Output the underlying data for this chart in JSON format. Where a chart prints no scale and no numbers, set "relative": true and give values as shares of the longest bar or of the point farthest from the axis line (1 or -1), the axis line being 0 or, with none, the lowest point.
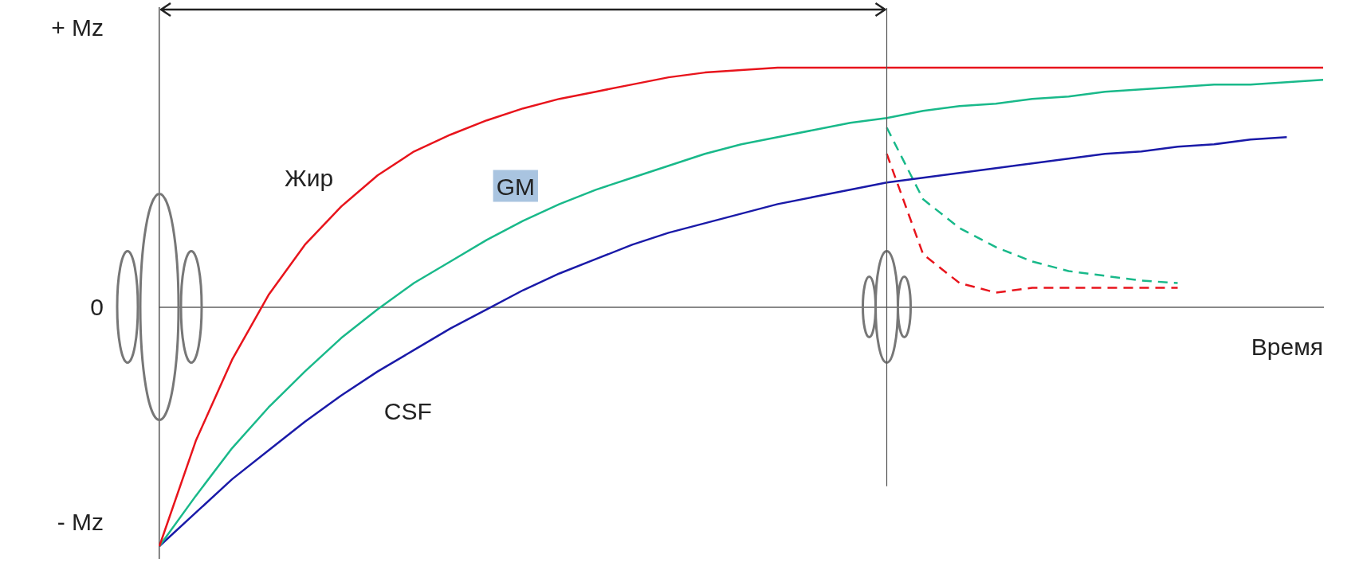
{
  "chart_data": {
    "type": "line",
    "xlabel": "Время",
    "legend": false,
    "grid": false,
    "marker": "none",
    "tick_labels": false,
    "categories": [
      null,
      null,
      null,
      null,
      null,
      null,
      null,
      null,
      null,
      null,
      null,
      null,
      null,
      null,
      null,
      null,
      null,
      null,
      null,
      null,
      null,
      null,
      null,
      null,
      null,
      null,
      null,
      null,
      null,
      null,
      null,
      null,
      null
    ],
    "relative": true,
    "annotations": [
      "+ Mz",
      "0",
      "- Mz"
    ],
    "series": [
      {
        "name": "Жир",
        "color": "#e8141c",
        "line_style": "solid",
        "values": [
          -1,
          -0.56,
          -0.22,
          0.05,
          0.26,
          0.42,
          0.55,
          0.65,
          0.72,
          0.78,
          0.83,
          0.87,
          0.9,
          0.93,
          0.96,
          0.98,
          0.99,
          1,
          1,
          1,
          1,
          1,
          1,
          1,
          1,
          1,
          1,
          1,
          1,
          1,
          1,
          1,
          1
        ]
      },
      {
        "name": "GM",
        "color": "#19b98a",
        "line_style": "solid",
        "values": [
          -1,
          -0.79,
          -0.59,
          -0.42,
          -0.27,
          -0.13,
          -0.01,
          0.1,
          0.19,
          0.28,
          0.36,
          0.43,
          0.49,
          0.54,
          0.59,
          0.64,
          0.68,
          0.71,
          0.74,
          0.77,
          0.79,
          0.82,
          0.84,
          0.85,
          0.87,
          0.88,
          0.9,
          0.91,
          0.92,
          0.93,
          0.93,
          0.94,
          0.95
        ]
      },
      {
        "name": "CSF",
        "color": "#1a1aa8",
        "line_style": "solid",
        "values": [
          -1,
          -0.86,
          -0.72,
          -0.6,
          -0.48,
          -0.37,
          -0.27,
          -0.18,
          -0.09,
          -0.01,
          0.07,
          0.14,
          0.2,
          0.26,
          0.31,
          0.35,
          0.39,
          0.43,
          0.46,
          0.49,
          0.52,
          0.54,
          0.56,
          0.58,
          0.6,
          0.62,
          0.64,
          0.65,
          0.67,
          0.68,
          0.7,
          0.71,
          null
        ]
      },
      {
        "color": "#e8141c",
        "line_style": "dashed",
        "values": [
          null,
          null,
          null,
          null,
          null,
          null,
          null,
          null,
          null,
          null,
          null,
          null,
          null,
          null,
          null,
          null,
          null,
          null,
          null,
          null,
          0.64,
          0.22,
          0.1,
          0.06,
          0.08,
          0.08,
          0.08,
          0.08,
          0.08,
          null,
          null,
          null,
          null
        ]
      },
      {
        "color": "#19b98a",
        "line_style": "dashed",
        "values": [
          null,
          null,
          null,
          null,
          null,
          null,
          null,
          null,
          null,
          null,
          null,
          null,
          null,
          null,
          null,
          null,
          null,
          null,
          null,
          null,
          0.75,
          0.45,
          0.33,
          0.25,
          0.19,
          0.15,
          0.13,
          0.11,
          0.1,
          null,
          null,
          null,
          null
        ]
      }
    ]
  }
}
